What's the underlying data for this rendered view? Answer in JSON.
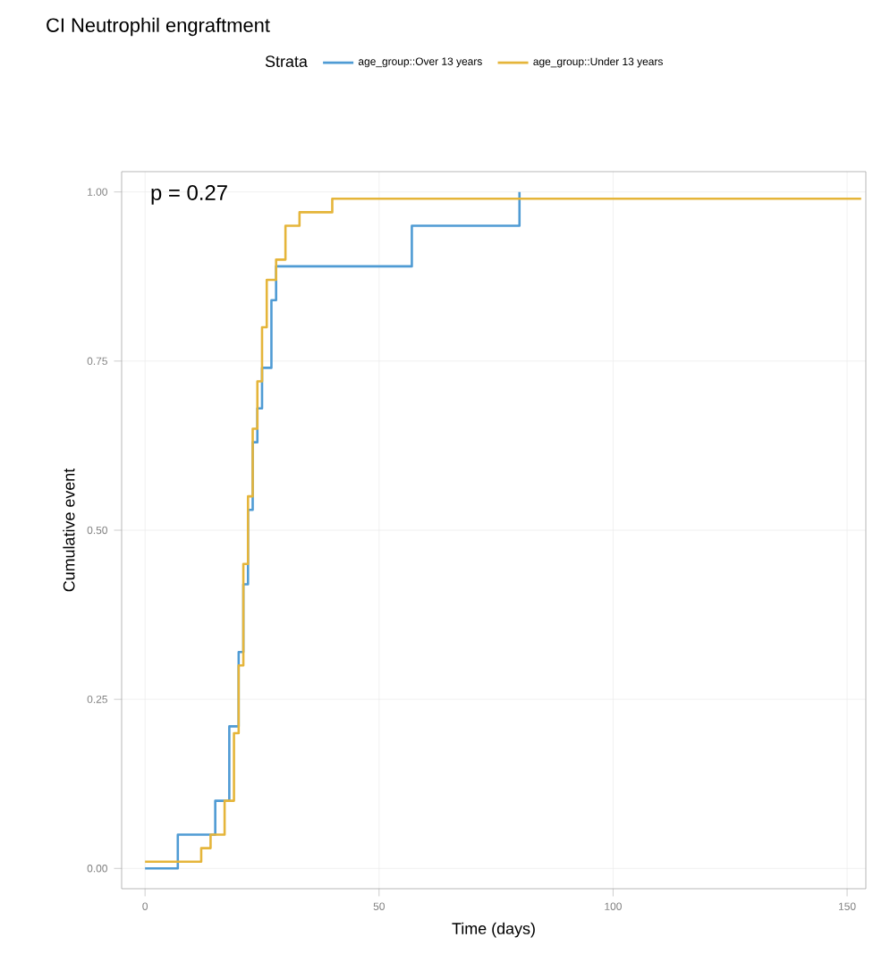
{
  "chart_data": {
    "type": "step",
    "title": "CI Neutrophil engraftment",
    "xlabel": "Time (days)",
    "ylabel": "Cumulative event",
    "legend_title": "Strata",
    "legend": "top",
    "grid": true,
    "annotations": [
      "p = 0.27"
    ],
    "xlim": [
      -5,
      154
    ],
    "xticks": [
      0,
      50,
      100,
      150
    ],
    "ylim": [
      -0.03,
      1.03
    ],
    "yticks": [
      {
        "value": 0,
        "label": "0.00"
      },
      {
        "value": 0.25,
        "label": "0.25"
      },
      {
        "value": 0.5,
        "label": "0.50"
      },
      {
        "value": 0.75,
        "label": "0.75"
      },
      {
        "value": 1,
        "label": "1.00"
      }
    ],
    "series": [
      {
        "name": "age_group::Over 13 years",
        "color": "#4f9bd4",
        "x": [
          0,
          7,
          15,
          16,
          18,
          20,
          21,
          22,
          23,
          24,
          25,
          27,
          28,
          57,
          80
        ],
        "values": [
          0,
          0.05,
          0.1,
          0.1,
          0.21,
          0.32,
          0.42,
          0.53,
          0.63,
          0.68,
          0.74,
          0.84,
          0.89,
          0.95,
          1.0
        ]
      },
      {
        "name": "age_group::Under 13 years",
        "color": "#e5b53a",
        "x": [
          0,
          10,
          12,
          14,
          17,
          19,
          20,
          21,
          22,
          23,
          24,
          25,
          26,
          28,
          30,
          33,
          40,
          153
        ],
        "values": [
          0.01,
          0.01,
          0.03,
          0.05,
          0.1,
          0.2,
          0.3,
          0.45,
          0.55,
          0.65,
          0.72,
          0.8,
          0.87,
          0.9,
          0.95,
          0.97,
          0.99,
          0.99
        ]
      }
    ]
  }
}
